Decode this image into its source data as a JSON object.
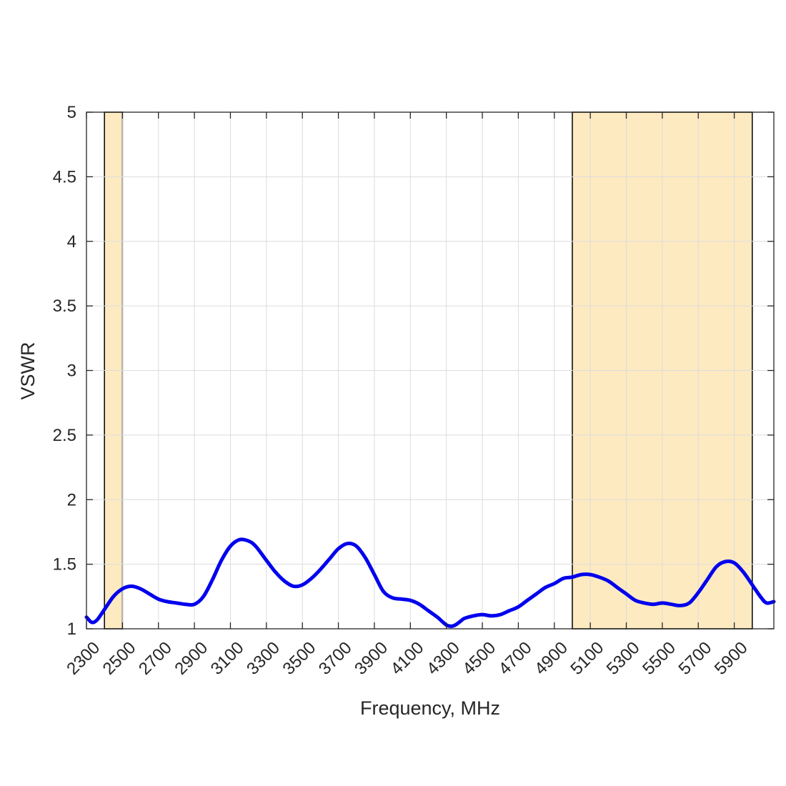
{
  "chart_data": {
    "type": "line",
    "title": "",
    "xlabel": "Frequency, MHz",
    "ylabel": "VSWR",
    "xlim": [
      2300,
      6120
    ],
    "ylim": [
      1,
      5
    ],
    "grid": true,
    "x_ticks": [
      2300,
      2500,
      2700,
      2900,
      3100,
      3300,
      3500,
      3700,
      3900,
      4100,
      4300,
      4500,
      4700,
      4900,
      5100,
      5300,
      5500,
      5700,
      5900
    ],
    "y_ticks": [
      1,
      1.5,
      2,
      2.5,
      3,
      3.5,
      4,
      4.5,
      5
    ],
    "y_tick_labels": [
      "1",
      "1.5",
      "2",
      "2.5",
      "3",
      "3.5",
      "4",
      "4.5",
      "5"
    ],
    "bands": [
      {
        "x_start": 2400,
        "x_end": 2500,
        "color": "#fbb520"
      },
      {
        "x_start": 5000,
        "x_end": 6000,
        "color": "#fbb520"
      }
    ],
    "series": [
      {
        "color": "#0000ee",
        "x": [
          2300,
          2330,
          2360,
          2400,
          2450,
          2500,
          2550,
          2600,
          2650,
          2700,
          2750,
          2800,
          2850,
          2900,
          2950,
          3000,
          3050,
          3100,
          3150,
          3200,
          3240,
          3300,
          3350,
          3400,
          3450,
          3500,
          3550,
          3600,
          3650,
          3700,
          3750,
          3800,
          3850,
          3900,
          3950,
          4000,
          4050,
          4100,
          4150,
          4200,
          4250,
          4300,
          4330,
          4350,
          4380,
          4400,
          4450,
          4500,
          4550,
          4600,
          4650,
          4700,
          4750,
          4800,
          4850,
          4900,
          4950,
          5000,
          5050,
          5100,
          5150,
          5200,
          5250,
          5300,
          5350,
          5400,
          5450,
          5500,
          5550,
          5600,
          5650,
          5700,
          5750,
          5800,
          5850,
          5900,
          5950,
          6000,
          6050,
          6080,
          6120
        ],
        "y": [
          1.09,
          1.05,
          1.07,
          1.15,
          1.25,
          1.31,
          1.33,
          1.31,
          1.27,
          1.23,
          1.21,
          1.2,
          1.19,
          1.19,
          1.25,
          1.38,
          1.53,
          1.64,
          1.69,
          1.68,
          1.64,
          1.53,
          1.44,
          1.37,
          1.33,
          1.34,
          1.39,
          1.46,
          1.54,
          1.62,
          1.66,
          1.64,
          1.55,
          1.42,
          1.29,
          1.24,
          1.23,
          1.22,
          1.19,
          1.14,
          1.09,
          1.03,
          1.02,
          1.03,
          1.06,
          1.08,
          1.1,
          1.11,
          1.1,
          1.11,
          1.14,
          1.17,
          1.22,
          1.27,
          1.32,
          1.35,
          1.39,
          1.4,
          1.42,
          1.42,
          1.4,
          1.37,
          1.32,
          1.27,
          1.22,
          1.2,
          1.19,
          1.2,
          1.19,
          1.18,
          1.2,
          1.28,
          1.38,
          1.48,
          1.52,
          1.51,
          1.44,
          1.34,
          1.24,
          1.2,
          1.21
        ]
      }
    ]
  }
}
